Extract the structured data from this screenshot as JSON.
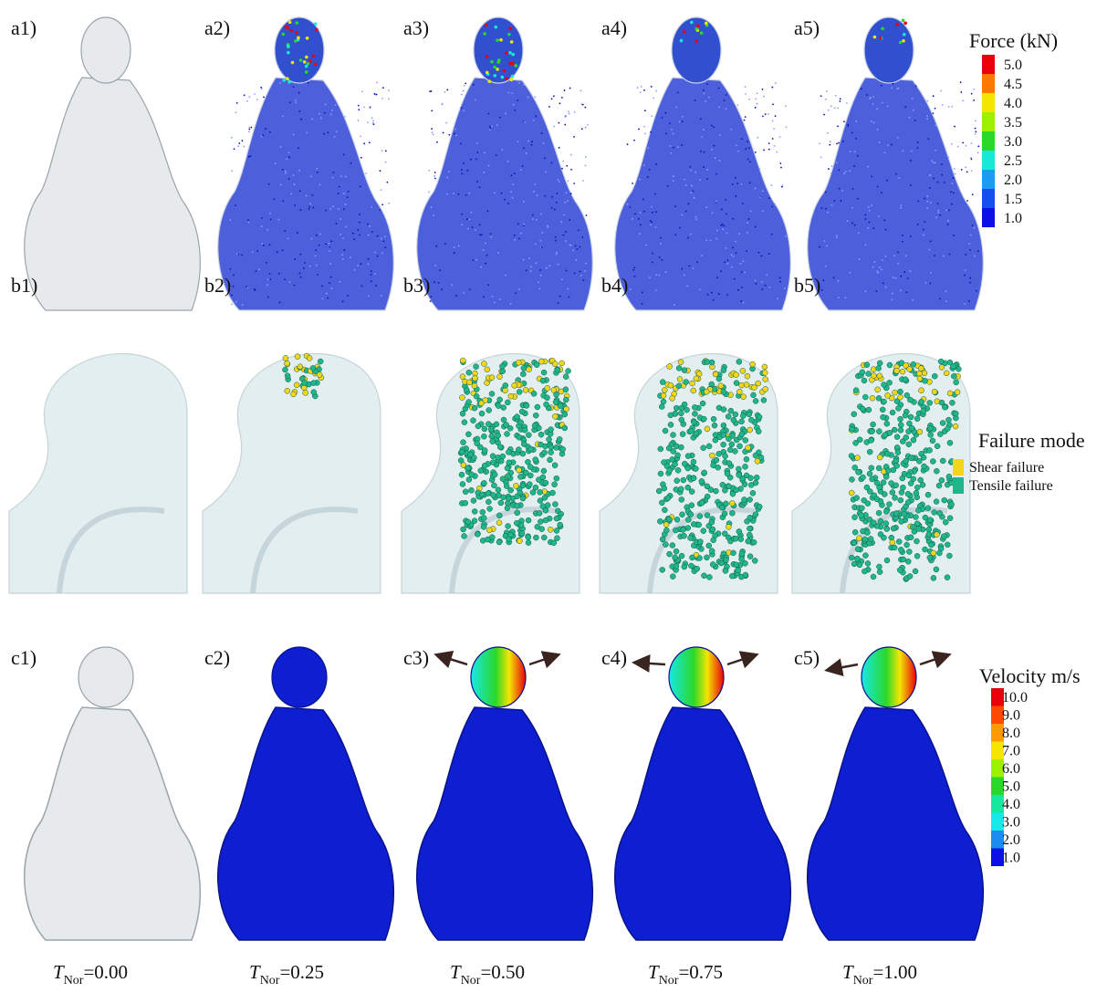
{
  "panels": {
    "rows": [
      {
        "labels": [
          "a1)",
          "a2)",
          "a3)",
          "a4)",
          "a5)"
        ]
      },
      {
        "labels": [
          "b1)",
          "b2)",
          "b3)",
          "b4)",
          "b5)"
        ]
      },
      {
        "labels": [
          "c1)",
          "c2)",
          "c3)",
          "c4)",
          "c5)"
        ]
      }
    ]
  },
  "force_legend": {
    "title": "Force (kN)",
    "items": [
      {
        "label": "5.0",
        "color": "#e8000b"
      },
      {
        "label": "4.5",
        "color": "#ff7800"
      },
      {
        "label": "4.0",
        "color": "#f4e600"
      },
      {
        "label": "3.5",
        "color": "#9cf000"
      },
      {
        "label": "3.0",
        "color": "#2ad82a"
      },
      {
        "label": "2.5",
        "color": "#17e8d8"
      },
      {
        "label": "2.0",
        "color": "#1c9cf0"
      },
      {
        "label": "1.5",
        "color": "#1450f0"
      },
      {
        "label": "1.0",
        "color": "#0a10e6"
      }
    ]
  },
  "failure_legend": {
    "title": "Failure mode",
    "items": [
      {
        "label": "Shear failure",
        "color": "#f2d51c"
      },
      {
        "label": "Tensile failure",
        "color": "#21b58c"
      }
    ]
  },
  "velocity_legend": {
    "title": "Velocity m/s",
    "items": [
      {
        "label": "10.0",
        "color": "#e8000b"
      },
      {
        "label": "9.0",
        "color": "#ff4a00"
      },
      {
        "label": "8.0",
        "color": "#ff9a00"
      },
      {
        "label": "7.0",
        "color": "#f4e600"
      },
      {
        "label": "6.0",
        "color": "#9cf000"
      },
      {
        "label": "5.0",
        "color": "#2ad82a"
      },
      {
        "label": "4.0",
        "color": "#17e8a0"
      },
      {
        "label": "3.0",
        "color": "#17e8e8"
      },
      {
        "label": "2.0",
        "color": "#1c8cf0"
      },
      {
        "label": "1.0",
        "color": "#0a10e6"
      }
    ]
  },
  "time_labels": {
    "symbol": "T",
    "subscript": "Nor",
    "values": [
      "=0.00",
      "=0.25",
      "=0.50",
      "=0.75",
      "=1.00"
    ]
  }
}
